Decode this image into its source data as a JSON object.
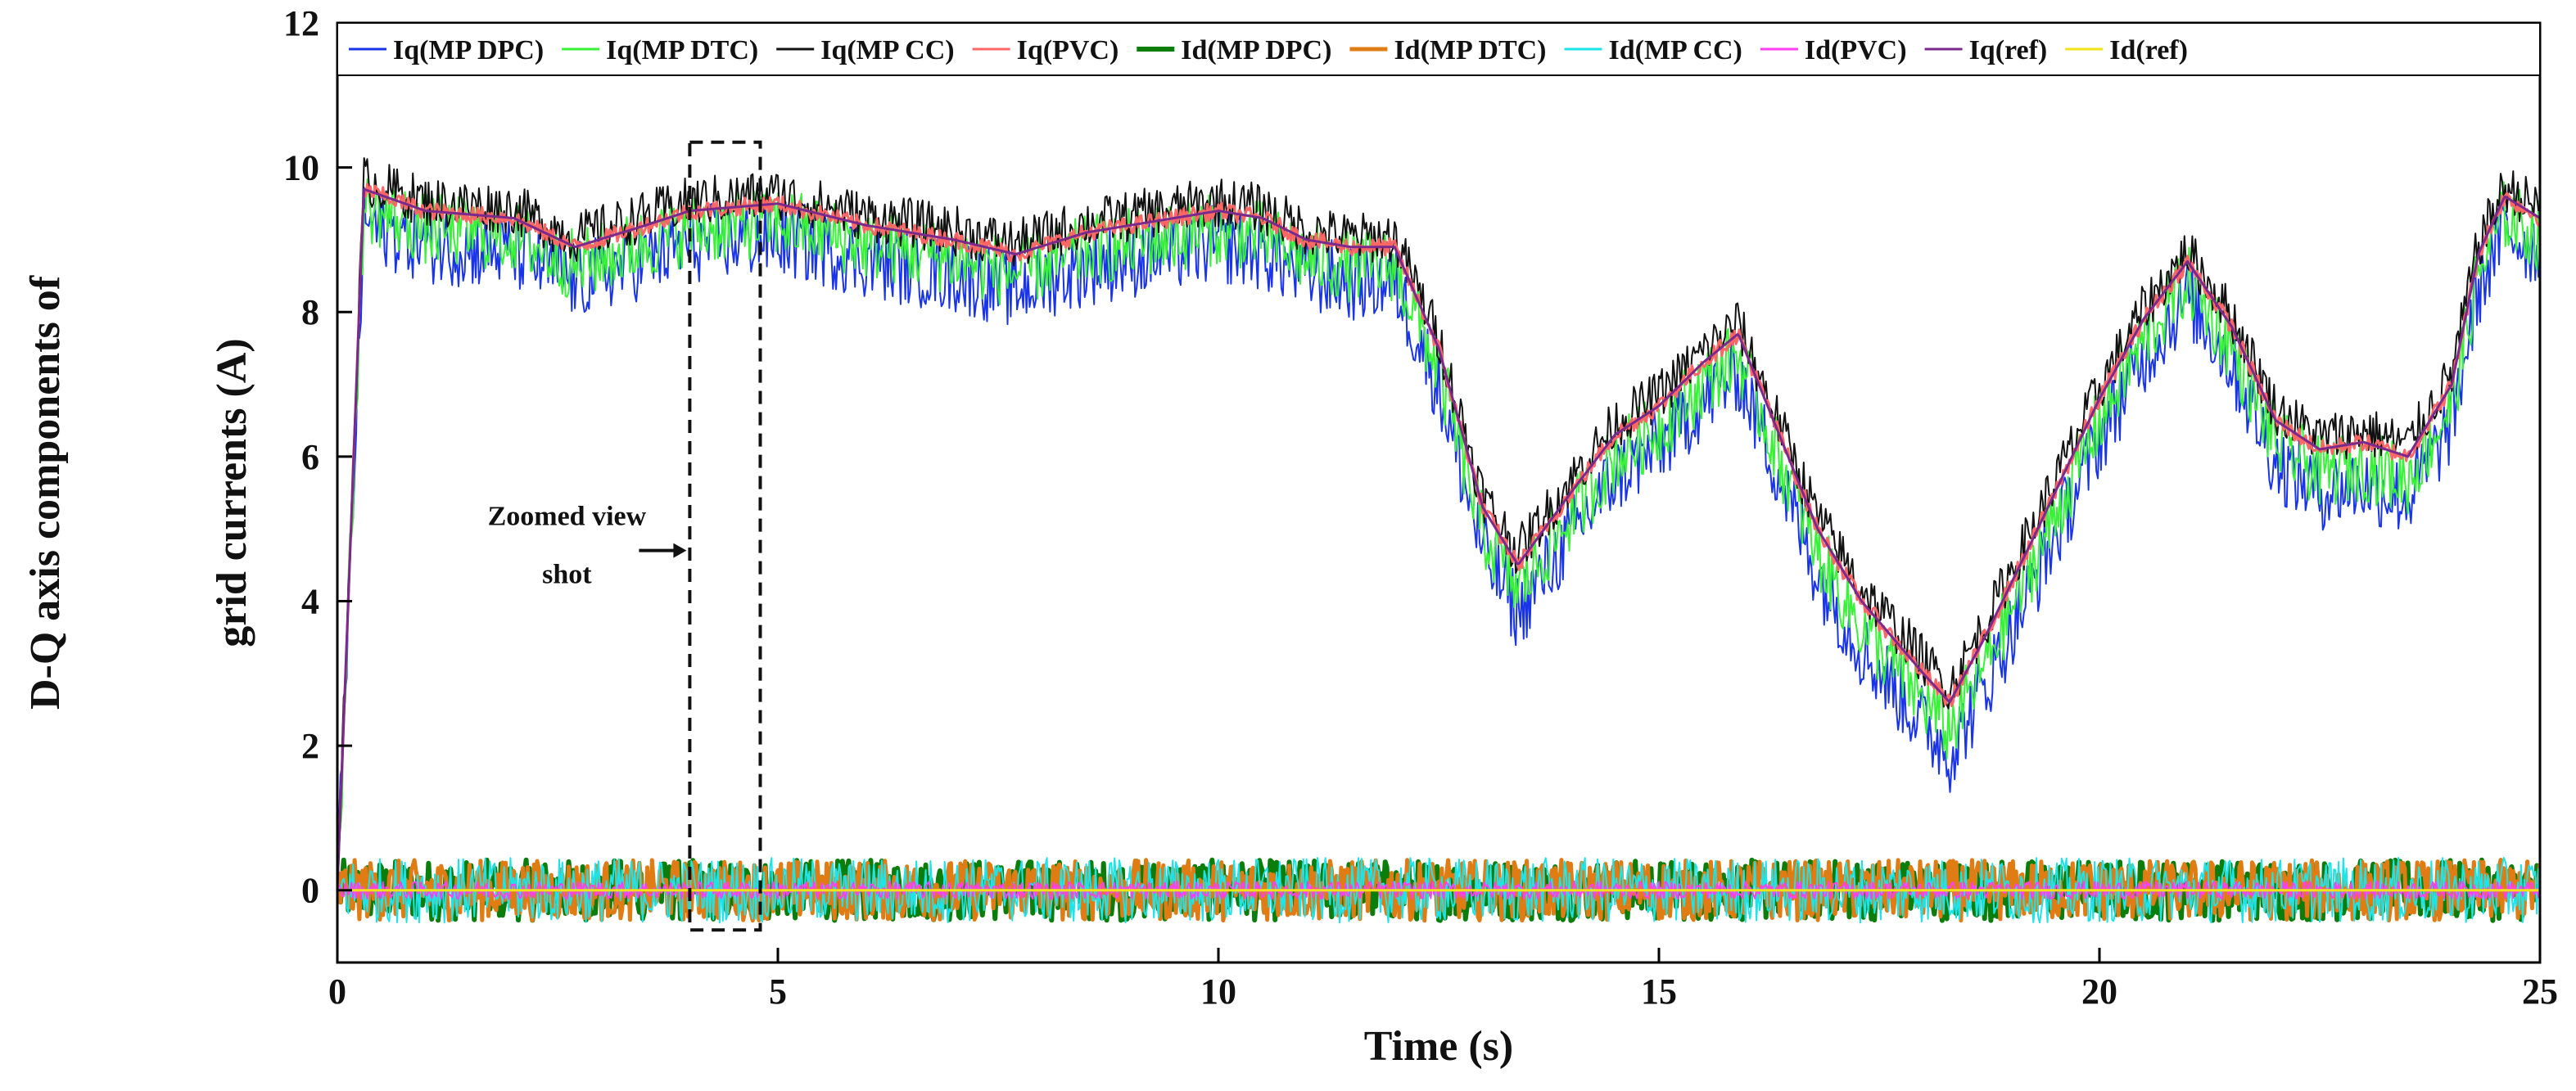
{
  "chart_data": {
    "type": "line",
    "title": "",
    "xlabel": "Time (s)",
    "ylabel_lines": [
      "D-Q axis components of",
      "grid currents (A)"
    ],
    "xlim": [
      0,
      25
    ],
    "ylim": [
      -1,
      12
    ],
    "xticks": [
      0,
      5,
      10,
      15,
      20,
      25
    ],
    "yticks": [
      0,
      2,
      4,
      6,
      8,
      10,
      12
    ],
    "grid": false,
    "legend_position": "top",
    "annotation": {
      "lines": [
        "Zoomed view",
        "shot"
      ],
      "box_x": [
        4.0,
        4.8
      ],
      "box_y": [
        -0.55,
        10.35
      ]
    },
    "base_iq": {
      "x": [
        0,
        0.3,
        1,
        2,
        2.7,
        3.5,
        4,
        5,
        6,
        7,
        7.7,
        8.5,
        9,
        10,
        10.5,
        11,
        11.5,
        12,
        12.5,
        13,
        13.4,
        14,
        14.5,
        15,
        15.5,
        15.9,
        16.3,
        16.8,
        17.3,
        18,
        18.3,
        18.7,
        19.3,
        20,
        20.5,
        21,
        21.5,
        22,
        22.5,
        23,
        23.5,
        24,
        24.3,
        24.6,
        25
      ],
      "y": [
        0,
        9.7,
        9.4,
        9.3,
        8.9,
        9.2,
        9.4,
        9.5,
        9.2,
        9.0,
        8.8,
        9.1,
        9.2,
        9.4,
        9.3,
        9.0,
        8.9,
        8.9,
        7.5,
        5.3,
        4.5,
        5.5,
        6.3,
        6.7,
        7.3,
        7.7,
        6.5,
        5.0,
        4.0,
        3.0,
        2.6,
        3.5,
        5.0,
        6.8,
        7.9,
        8.7,
        7.8,
        6.5,
        6.1,
        6.2,
        6.0,
        7.0,
        8.8,
        9.6,
        9.3
      ]
    },
    "series": [
      {
        "name": "Iq(MP DPC)",
        "color": "#1a35e8",
        "offset": -0.55,
        "noise": 0.55,
        "width": 2
      },
      {
        "name": "Iq(MP DTC)",
        "color": "#38f238",
        "offset": -0.3,
        "noise": 0.5,
        "width": 2
      },
      {
        "name": "Iq(MP CC)",
        "color": "#111111",
        "offset": 0.15,
        "noise": 0.35,
        "width": 2
      },
      {
        "name": "Iq(PVC)",
        "color": "#ff6666",
        "offset": 0.0,
        "noise": 0.12,
        "width": 3
      },
      {
        "name": "Id(MP DPC)",
        "color": "#0b7d0b",
        "offset": 0.0,
        "noise": 0.42,
        "width": 6
      },
      {
        "name": "Id(MP DTC)",
        "color": "#e07c14",
        "offset": 0.0,
        "noise": 0.42,
        "width": 5
      },
      {
        "name": "Id(MP CC)",
        "color": "#1ee3e8",
        "offset": 0.0,
        "noise": 0.45,
        "width": 2
      },
      {
        "name": "Id(PVC)",
        "color": "#ff3df2",
        "offset": 0.0,
        "noise": 0.12,
        "width": 2
      },
      {
        "name": "Iq(ref)",
        "color": "#7a2a8c",
        "offset": 0.0,
        "noise": 0.0,
        "width": 3
      },
      {
        "name": "Id(ref)",
        "color": "#f2e318",
        "offset": 0.0,
        "noise": 0.0,
        "width": 3
      }
    ]
  }
}
